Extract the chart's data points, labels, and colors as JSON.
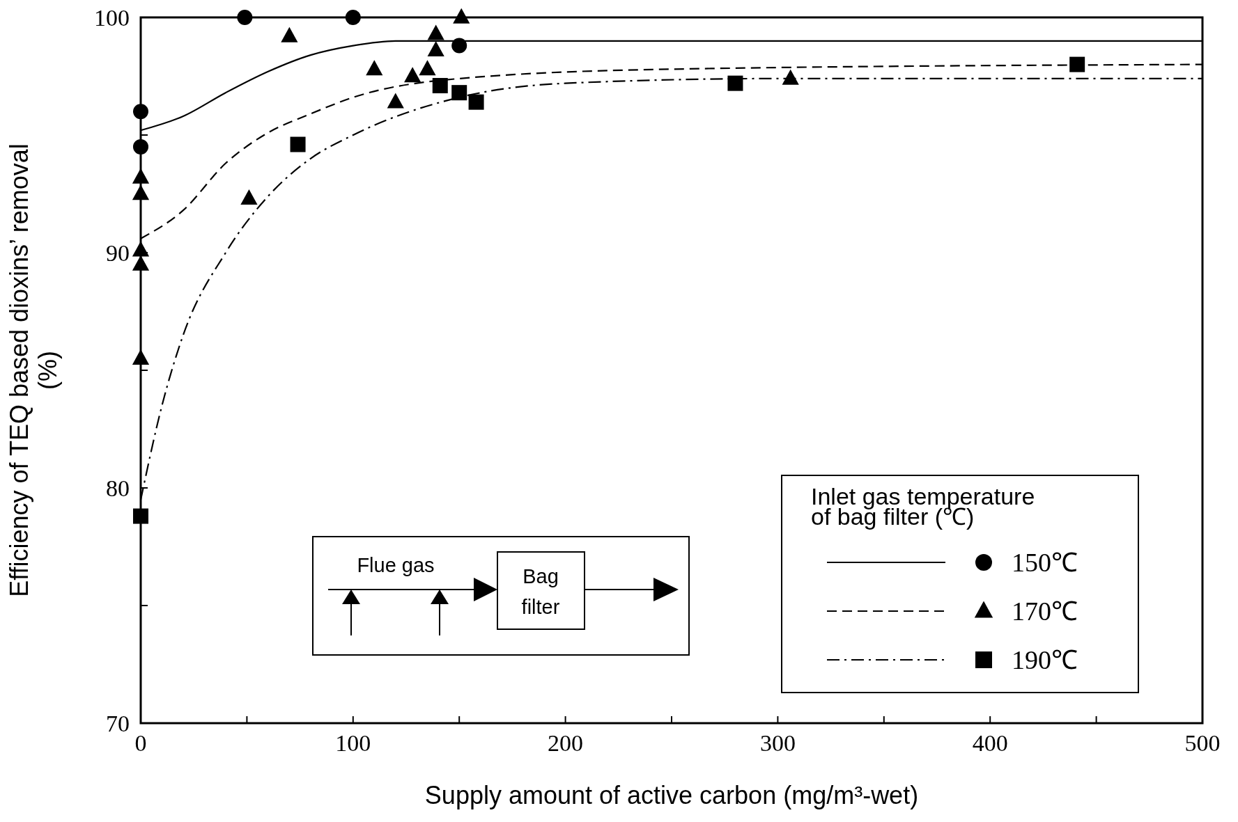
{
  "chart_data": {
    "type": "scatter",
    "xlabel": "Supply amount of active carbon (mg/m³-wet)",
    "ylabel": "Efficiency of TEQ based dioxins’ removal (%)",
    "legend_title": "Inlet gas temperature of bag filter (℃)",
    "legend": "bottom right",
    "grid": false,
    "xlim": [
      0,
      500
    ],
    "xticks": [
      0,
      {
        "value": 50,
        "label": null
      },
      100,
      {
        "value": 150,
        "label": null
      },
      200,
      {
        "value": 250,
        "label": null
      },
      300,
      {
        "value": 350,
        "label": null
      },
      400,
      {
        "value": 450,
        "label": null
      },
      500
    ],
    "ylim": [
      70,
      100
    ],
    "yticks": [
      70,
      {
        "value": 75,
        "label": null
      },
      80,
      {
        "value": 85,
        "label": null
      },
      90,
      {
        "value": 95,
        "label": null
      },
      100
    ],
    "annotations": [
      "Flue gas",
      "Bag filter"
    ],
    "series": [
      {
        "type": "line",
        "name": "150℃",
        "color": "#000000",
        "line_style": "solid",
        "x": [
          0,
          20,
          40,
          60,
          80,
          100,
          120,
          500
        ],
        "values": [
          95.2,
          95.8,
          96.8,
          97.7,
          98.4,
          98.8,
          99.0,
          99.0
        ]
      },
      {
        "type": "line",
        "name": "170℃",
        "color": "#000000",
        "line_style": "dashed",
        "x": [
          0,
          20,
          40,
          60,
          80,
          100,
          150,
          250,
          500
        ],
        "values": [
          90.6,
          91.8,
          93.8,
          95.1,
          95.9,
          96.6,
          97.4,
          97.8,
          98.0
        ]
      },
      {
        "type": "line",
        "name": "190℃",
        "color": "#000000",
        "line_style": "dashdot",
        "x": [
          0,
          10,
          20,
          40,
          60,
          80,
          100,
          150,
          200,
          300,
          500
        ],
        "values": [
          79.5,
          83.5,
          86.5,
          90.0,
          92.4,
          94.0,
          95.0,
          96.6,
          97.2,
          97.4,
          97.4
        ]
      },
      {
        "color": "#000000",
        "marker": "circle",
        "x": [
          0,
          0,
          49,
          100,
          150
        ],
        "values": [
          96.0,
          94.5,
          100,
          100,
          98.8
        ]
      },
      {
        "color": "#000000",
        "marker": "triangle",
        "x": [
          0,
          0,
          0,
          0,
          0,
          51,
          70,
          110,
          120,
          128,
          135,
          139,
          139,
          151,
          306
        ],
        "values": [
          93.2,
          92.5,
          90.1,
          89.5,
          85.5,
          92.3,
          99.2,
          97.8,
          96.4,
          97.5,
          97.8,
          99.3,
          98.6,
          100,
          97.4
        ]
      },
      {
        "color": "#000000",
        "marker": "square",
        "x": [
          0,
          74,
          141,
          150,
          158,
          280,
          441
        ],
        "values": [
          78.8,
          94.6,
          97.1,
          96.8,
          96.4,
          97.2,
          98.0
        ]
      }
    ]
  }
}
